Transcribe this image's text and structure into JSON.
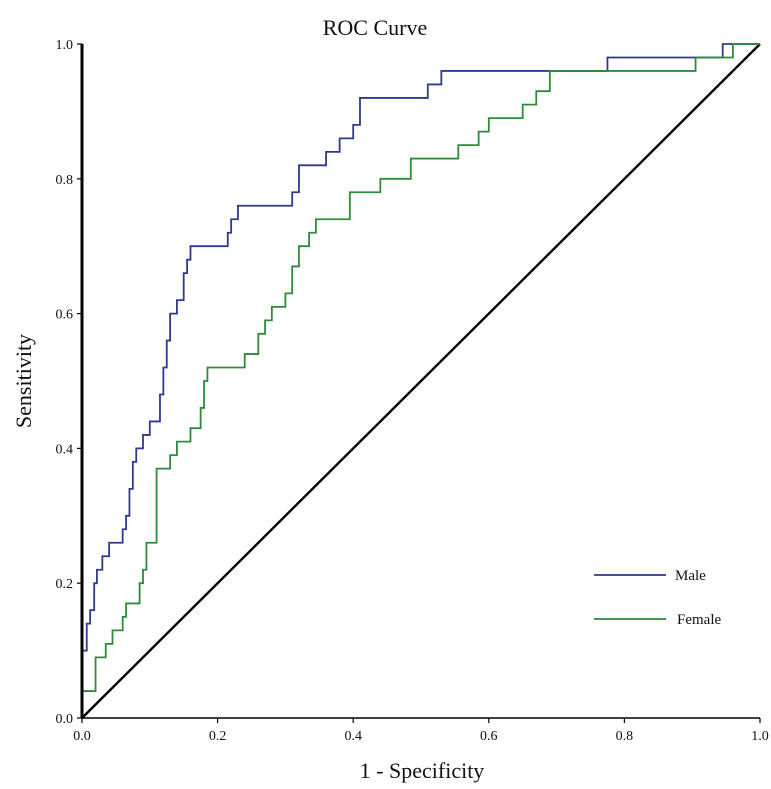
{
  "chart_data": {
    "type": "line",
    "title": "ROC Curve",
    "xlabel": "1 - Specificity",
    "ylabel": "Sensitivity",
    "xlim": [
      0,
      1
    ],
    "ylim": [
      0,
      1
    ],
    "x_ticks": [
      "0.0",
      "0.2",
      "0.4",
      "0.6",
      "0.8",
      "1.0"
    ],
    "y_ticks": [
      "0.0",
      "0.2",
      "0.4",
      "0.6",
      "0.8",
      "1.0"
    ],
    "grid": false,
    "legend_position": "bottom-right",
    "reference_line": {
      "color": "#000000",
      "x": [
        0,
        1
      ],
      "y": [
        0,
        1
      ]
    },
    "series": [
      {
        "name": "Male",
        "color": "#2e3a8c",
        "x": [
          0.0,
          0.0,
          0.007,
          0.007,
          0.012,
          0.012,
          0.018,
          0.018,
          0.022,
          0.022,
          0.025,
          0.025,
          0.03,
          0.03,
          0.04,
          0.04,
          0.045,
          0.045,
          0.06,
          0.06,
          0.065,
          0.065,
          0.07,
          0.07,
          0.075,
          0.075,
          0.08,
          0.08,
          0.09,
          0.09,
          0.1,
          0.1,
          0.115,
          0.115,
          0.12,
          0.12,
          0.125,
          0.125,
          0.13,
          0.13,
          0.14,
          0.14,
          0.15,
          0.15,
          0.155,
          0.155,
          0.16,
          0.16,
          0.17,
          0.17,
          0.215,
          0.215,
          0.22,
          0.22,
          0.23,
          0.23,
          0.31,
          0.31,
          0.32,
          0.32,
          0.36,
          0.36,
          0.38,
          0.38,
          0.4,
          0.4,
          0.41,
          0.41,
          0.43,
          0.43,
          0.51,
          0.51,
          0.53,
          0.53,
          0.775,
          0.775,
          0.945,
          0.945,
          0.96,
          1.0
        ],
        "y": [
          0.0,
          0.1,
          0.1,
          0.14,
          0.14,
          0.16,
          0.16,
          0.2,
          0.2,
          0.22,
          0.22,
          0.22,
          0.22,
          0.24,
          0.24,
          0.26,
          0.26,
          0.26,
          0.26,
          0.28,
          0.28,
          0.3,
          0.3,
          0.34,
          0.34,
          0.38,
          0.38,
          0.4,
          0.4,
          0.42,
          0.42,
          0.44,
          0.44,
          0.48,
          0.48,
          0.52,
          0.52,
          0.56,
          0.56,
          0.6,
          0.6,
          0.62,
          0.62,
          0.66,
          0.66,
          0.68,
          0.68,
          0.7,
          0.7,
          0.7,
          0.7,
          0.72,
          0.72,
          0.74,
          0.74,
          0.76,
          0.76,
          0.78,
          0.78,
          0.82,
          0.82,
          0.84,
          0.84,
          0.86,
          0.86,
          0.88,
          0.88,
          0.92,
          0.92,
          0.92,
          0.92,
          0.94,
          0.94,
          0.96,
          0.96,
          0.98,
          0.98,
          1.0,
          1.0,
          1.0
        ]
      },
      {
        "name": "Female",
        "color": "#2f8a3a",
        "x": [
          0.0,
          0.0,
          0.01,
          0.01,
          0.02,
          0.02,
          0.035,
          0.035,
          0.045,
          0.045,
          0.06,
          0.06,
          0.065,
          0.065,
          0.07,
          0.07,
          0.085,
          0.085,
          0.09,
          0.09,
          0.095,
          0.095,
          0.11,
          0.11,
          0.13,
          0.13,
          0.14,
          0.14,
          0.16,
          0.16,
          0.175,
          0.175,
          0.18,
          0.18,
          0.185,
          0.185,
          0.24,
          0.24,
          0.26,
          0.26,
          0.27,
          0.27,
          0.28,
          0.28,
          0.3,
          0.3,
          0.31,
          0.31,
          0.32,
          0.32,
          0.335,
          0.335,
          0.345,
          0.345,
          0.395,
          0.395,
          0.44,
          0.44,
          0.485,
          0.485,
          0.555,
          0.555,
          0.585,
          0.585,
          0.6,
          0.6,
          0.65,
          0.65,
          0.66,
          0.66,
          0.67,
          0.67,
          0.69,
          0.69,
          0.905,
          0.905,
          0.96,
          0.96,
          1.0
        ],
        "y": [
          0.0,
          0.04,
          0.04,
          0.04,
          0.04,
          0.09,
          0.09,
          0.11,
          0.11,
          0.13,
          0.13,
          0.15,
          0.15,
          0.17,
          0.17,
          0.17,
          0.17,
          0.2,
          0.2,
          0.22,
          0.22,
          0.26,
          0.26,
          0.37,
          0.37,
          0.39,
          0.39,
          0.41,
          0.41,
          0.43,
          0.43,
          0.46,
          0.46,
          0.5,
          0.5,
          0.52,
          0.52,
          0.54,
          0.54,
          0.57,
          0.57,
          0.59,
          0.59,
          0.61,
          0.61,
          0.63,
          0.63,
          0.67,
          0.67,
          0.7,
          0.7,
          0.72,
          0.72,
          0.74,
          0.74,
          0.78,
          0.78,
          0.8,
          0.8,
          0.83,
          0.83,
          0.85,
          0.85,
          0.87,
          0.87,
          0.89,
          0.89,
          0.91,
          0.91,
          0.91,
          0.91,
          0.93,
          0.93,
          0.96,
          0.96,
          0.98,
          0.98,
          1.0,
          1.0
        ]
      }
    ]
  }
}
